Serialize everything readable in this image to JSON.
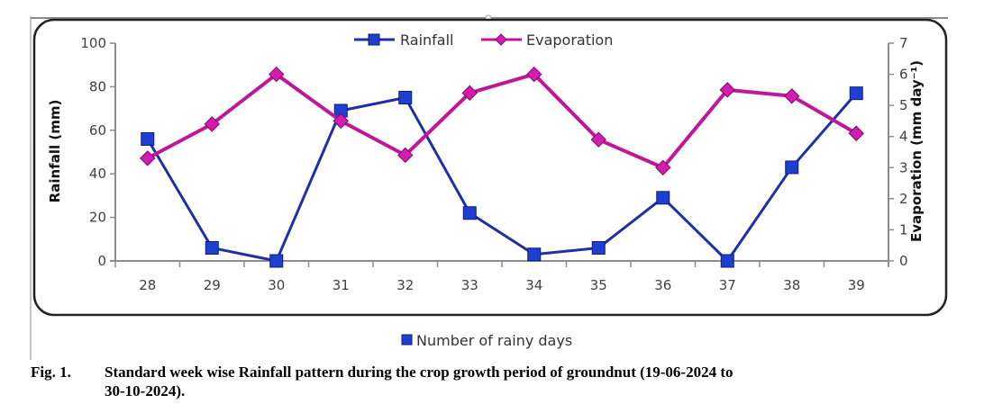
{
  "chart_data": {
    "type": "line",
    "title": "",
    "categories": [
      "28",
      "29",
      "30",
      "31",
      "32",
      "33",
      "34",
      "35",
      "36",
      "37",
      "38",
      "39"
    ],
    "xlabel": "",
    "ylabel": "Rainfall (mm)",
    "y2label": "Evaporation (mm day⁻¹)",
    "ylim": [
      0,
      100
    ],
    "y2lim": [
      0,
      7
    ],
    "yticks": [
      "0",
      "20",
      "40",
      "60",
      "80",
      "100"
    ],
    "y2ticks": [
      "0",
      "1",
      "2",
      "3",
      "4",
      "5",
      "6",
      "7"
    ],
    "grid": false,
    "legend_position": "top-center",
    "series": [
      {
        "name": "Rainfall",
        "axis": "left",
        "color": "#1f2fa8",
        "marker": "square",
        "marker_color": "#1e3fd0",
        "values": [
          56,
          6,
          0,
          69,
          75,
          22,
          3,
          6,
          29,
          0,
          43,
          77
        ]
      },
      {
        "name": "Evaporation",
        "axis": "right",
        "color": "#c0179a",
        "marker": "diamond",
        "marker_color": "#d51cb0",
        "values": [
          3.3,
          4.4,
          6.0,
          4.5,
          3.4,
          5.4,
          6.0,
          3.9,
          3.0,
          5.5,
          5.3,
          4.1
        ]
      }
    ],
    "secondary_legend": {
      "label": "Number of rainy days",
      "color": "#1e3fd0",
      "marker": "square"
    }
  },
  "caption": {
    "fig_label": "Fig. 1.",
    "line1": "Standard week wise Rainfall pattern during the crop growth period of groundnut (19-06-2024 to",
    "line2": "30-10-2024)."
  }
}
